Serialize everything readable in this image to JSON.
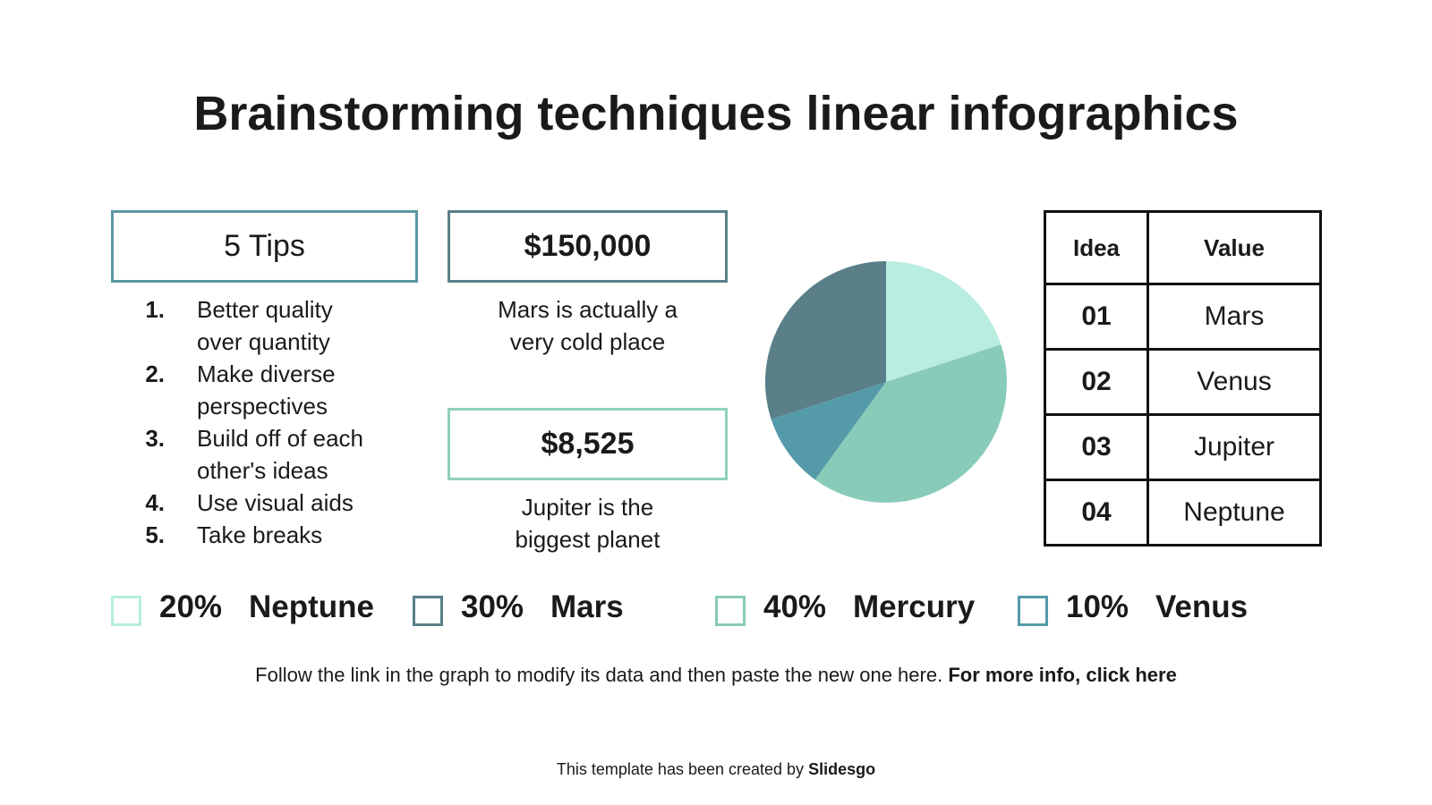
{
  "title": "Brainstorming techniques linear infographics",
  "tips": {
    "heading": "5 Tips",
    "items": [
      {
        "number": "1.",
        "lines": [
          "Better quality",
          "over quantity"
        ]
      },
      {
        "number": "2.",
        "lines": [
          "Make diverse",
          "perspectives"
        ]
      },
      {
        "number": "3.",
        "lines": [
          "Build off of each",
          "other's ideas"
        ]
      },
      {
        "number": "4.",
        "lines": [
          "Use visual aids"
        ]
      },
      {
        "number": "5.",
        "lines": [
          "Take breaks"
        ]
      }
    ]
  },
  "stats": [
    {
      "value": "$150,000",
      "lines": [
        "Mars is actually a",
        "very cold place"
      ]
    },
    {
      "value": "$8,525",
      "lines": [
        "Jupiter is the",
        "biggest planet"
      ]
    }
  ],
  "chart_data": {
    "type": "pie",
    "categories": [
      "Neptune",
      "Mercury",
      "Venus",
      "Mars"
    ],
    "values": [
      20,
      40,
      10,
      30
    ],
    "value_labels": [
      "20%",
      "40%",
      "10%",
      "30%"
    ],
    "colors": [
      "#b8ede0",
      "#88cbb8",
      "#559aa8",
      "#5a7f88"
    ]
  },
  "table": {
    "header": [
      "Idea",
      "Value"
    ],
    "rows": [
      [
        "01",
        "Mars"
      ],
      [
        "02",
        "Venus"
      ],
      [
        "03",
        "Jupiter"
      ],
      [
        "04",
        "Neptune"
      ]
    ]
  },
  "note": {
    "text": "Follow the link in the graph to modify its data and then paste the new one here.",
    "link": "For more info, click here"
  },
  "credit": {
    "text": "This template has been created by",
    "brand": "Slidesgo"
  }
}
